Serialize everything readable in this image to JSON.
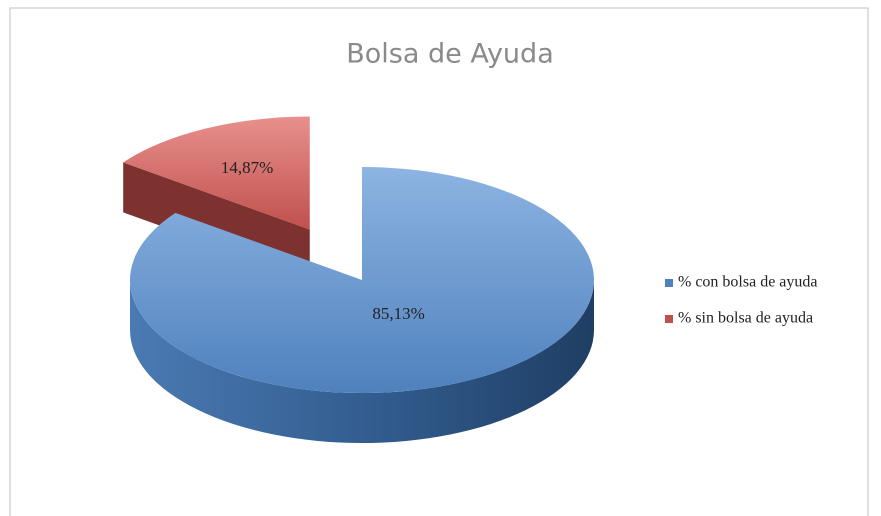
{
  "chart_data": {
    "type": "pie3d",
    "title": "Bolsa de Ayuda",
    "categories": [
      "% con bolsa de ayuda",
      "% sin bolsa de ayuda"
    ],
    "values": [
      85.13,
      14.87
    ],
    "value_labels": [
      "85,13%",
      "14,87%"
    ],
    "colors": [
      "#4f81bd",
      "#c0504d"
    ],
    "exploded": [
      false,
      true
    ],
    "legend": "right"
  }
}
